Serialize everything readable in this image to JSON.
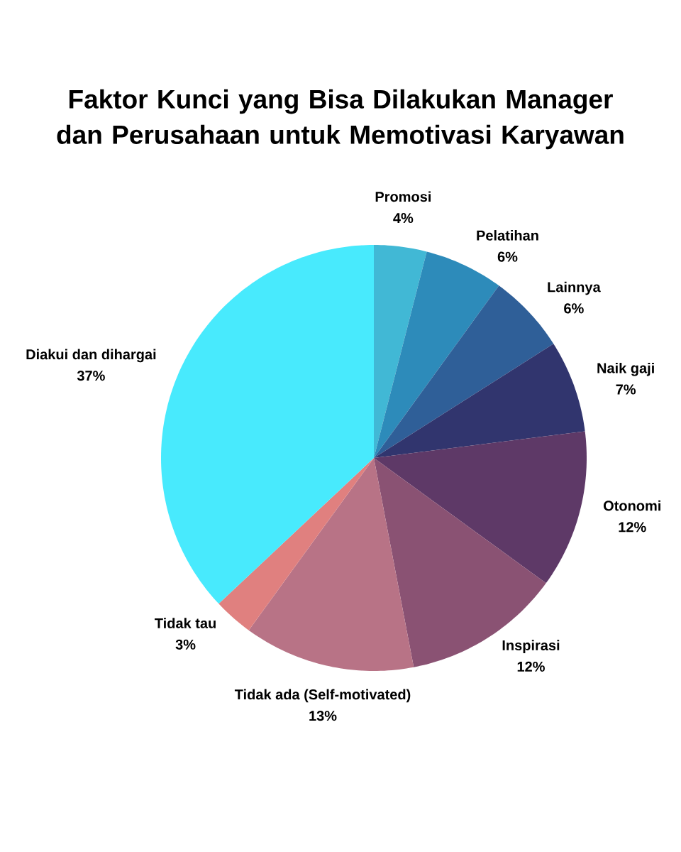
{
  "chart_data": {
    "type": "pie",
    "title": "Faktor Kunci yang Bisa Dilakukan Manager dan Perusahaan untuk Memotivasi Karyawan",
    "categories": [
      "Promosi",
      "Pelatihan",
      "Lainnya",
      "Naik gaji",
      "Otonomi",
      "Inspirasi",
      "Tidak ada (Self-motivated)",
      "Tidak tau",
      "Diakui dan dihargai"
    ],
    "values": [
      4,
      6,
      6,
      7,
      12,
      12,
      13,
      3,
      37
    ],
    "value_labels": [
      "4%",
      "6%",
      "6%",
      "7%",
      "12%",
      "12%",
      "13%",
      "3%",
      "37%"
    ],
    "colors": [
      "#41b8d5",
      "#2d8bba",
      "#2f5f98",
      "#31356e",
      "#5e3967",
      "#8a5273",
      "#b87386",
      "#e0807f",
      "#48eafd"
    ]
  }
}
